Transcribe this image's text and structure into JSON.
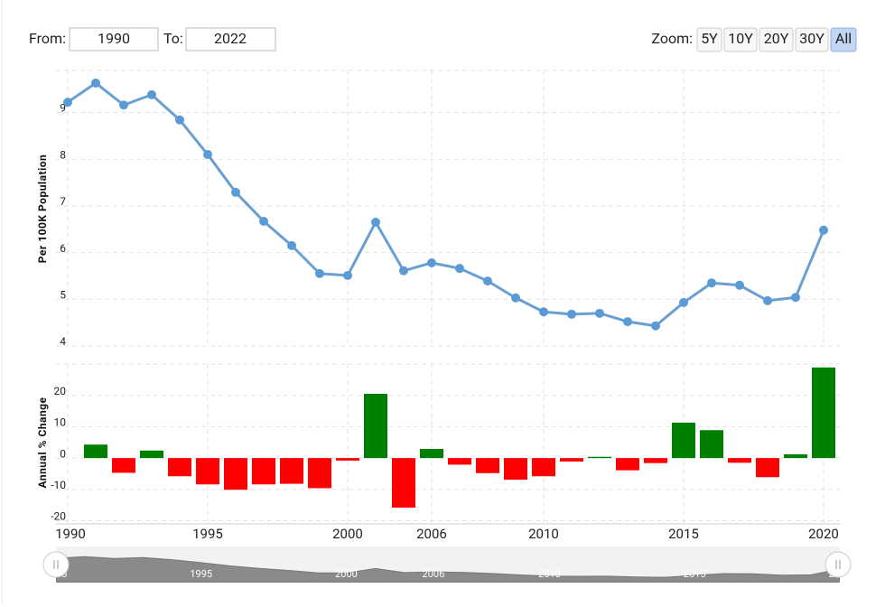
{
  "controls": {
    "from_label": "From:",
    "from_value": "1990",
    "to_label": "To:",
    "to_value": "2022",
    "zoom_label": "Zoom:",
    "zoom_buttons": [
      "5Y",
      "10Y",
      "20Y",
      "30Y",
      "All"
    ],
    "active": "All"
  },
  "chart_data": [
    {
      "type": "line",
      "ylabel": "Per 100K Population",
      "color": "#6a9fd4",
      "marker_color": "#5b9bd5",
      "categories": [
        "1990",
        null,
        null,
        null,
        null,
        "1995",
        null,
        null,
        null,
        null,
        "2000",
        null,
        null,
        "2006",
        null,
        null,
        null,
        "2010",
        null,
        null,
        null,
        null,
        "2015",
        null,
        null,
        null,
        null,
        "2020"
      ],
      "values": [
        9.22,
        9.63,
        9.16,
        9.38,
        8.84,
        8.1,
        7.29,
        6.67,
        6.15,
        5.55,
        5.51,
        6.65,
        5.61,
        5.78,
        5.66,
        5.39,
        5.03,
        4.73,
        4.68,
        4.7,
        4.52,
        4.43,
        4.93,
        5.35,
        5.3,
        4.97,
        5.04,
        6.48
      ],
      "ylim": [
        4,
        9.9
      ],
      "yticks": [
        4,
        5,
        6,
        7,
        8,
        9
      ],
      "grid": true
    },
    {
      "type": "bar",
      "ylabel": "Annual % Change",
      "positive_color": "#008000",
      "negative_color": "#ff0000",
      "categories": [
        "1990",
        null,
        null,
        null,
        null,
        "1995",
        null,
        null,
        null,
        null,
        "2000",
        null,
        null,
        "2006",
        null,
        null,
        null,
        "2010",
        null,
        null,
        null,
        null,
        "2015",
        null,
        null,
        null,
        null,
        "2020"
      ],
      "values": [
        null,
        4.3,
        -4.7,
        2.4,
        -5.8,
        -8.4,
        -10.1,
        -8.4,
        -8.2,
        -9.6,
        -0.8,
        20.5,
        -15.8,
        2.9,
        -2.1,
        -4.8,
        -6.9,
        -5.8,
        -1.1,
        0.4,
        -3.9,
        -1.6,
        11.3,
        8.9,
        -1.5,
        -6.1,
        1.2,
        28.9
      ],
      "ylim": [
        -21,
        30
      ],
      "yticks": [
        -20,
        -10,
        0,
        10,
        20
      ],
      "grid": true
    }
  ]
}
